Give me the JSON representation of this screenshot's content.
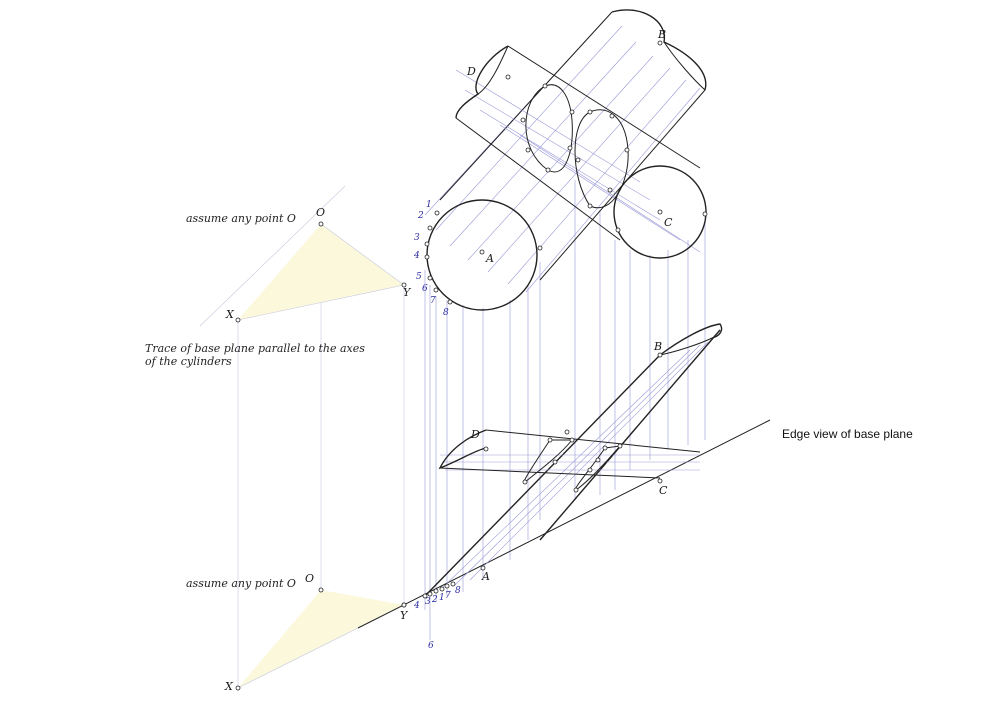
{
  "annotations": {
    "assume_top": "assume any point O",
    "assume_bottom": "assume any point O",
    "trace_note": "Trace of base plane parallel to the axes of the cylinders",
    "edge_view": "Edge view of base plane"
  },
  "labels": {
    "O": "O",
    "X": "X",
    "Y": "Y",
    "A": "A",
    "B": "B",
    "C": "C",
    "D": "D"
  },
  "numbers_top": [
    "1",
    "2",
    "3",
    "4",
    "5",
    "6",
    "7",
    "8"
  ],
  "numbers_bottom": [
    "4",
    "3",
    "2",
    "1",
    "7",
    "8",
    "6"
  ],
  "colors": {
    "construction": "#9a9ad8",
    "ink": "#222222",
    "triangle_fill": "#fbf8dc",
    "label_blue": "#2a2aa0"
  }
}
